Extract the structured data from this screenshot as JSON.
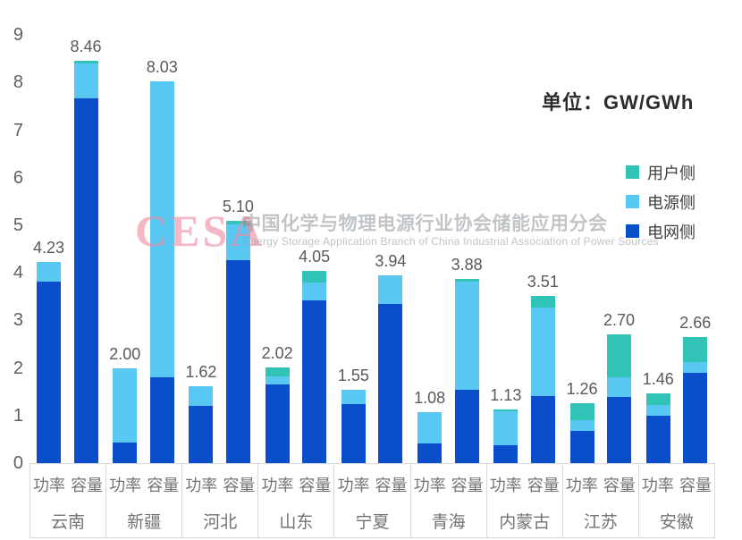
{
  "title": {
    "unit_label": "单位：GW/GWh"
  },
  "watermark": {
    "logo": "CESA",
    "cn": "中国化学与物理电源行业协会储能应用分会",
    "en": "Energy Storage Application Branch of China Industrial Association of Power Sources"
  },
  "legend": [
    {
      "label": "用户侧",
      "color": "#31c3b5"
    },
    {
      "label": "电源侧",
      "color": "#58c8f2"
    },
    {
      "label": "电网侧",
      "color": "#0b4ecb"
    }
  ],
  "chart_data": {
    "type": "bar",
    "stacked": true,
    "unit": "GW/GWh",
    "title": "单位：GW/GWh",
    "xlabel": "",
    "ylabel": "",
    "ylim": [
      0,
      9
    ],
    "y_step": 1,
    "grid": false,
    "legend_position": "right",
    "categories": [
      "云南",
      "新疆",
      "河北",
      "山东",
      "宁夏",
      "青海",
      "内蒙古",
      "江苏",
      "安徽"
    ],
    "sub_categories": [
      "功率",
      "容量"
    ],
    "series_order_bottom_to_top": [
      "电网侧",
      "电源侧",
      "用户侧"
    ],
    "series_colors": {
      "电网侧": "#0b4ecb",
      "电源侧": "#58c8f2",
      "用户侧": "#31c3b5"
    },
    "bars": [
      {
        "category": "云南",
        "sub": "功率",
        "label": "4.23",
        "total": 4.23,
        "segments": {
          "电网侧": 3.82,
          "电源侧": 0.41,
          "用户侧": 0
        }
      },
      {
        "category": "云南",
        "sub": "容量",
        "label": "8.46",
        "total": 8.46,
        "segments": {
          "电网侧": 7.67,
          "电源侧": 0.73,
          "用户侧": 0.06
        }
      },
      {
        "category": "新疆",
        "sub": "功率",
        "label": "2.00",
        "total": 2.0,
        "segments": {
          "电网侧": 0.43,
          "电源侧": 1.57,
          "用户侧": 0
        }
      },
      {
        "category": "新疆",
        "sub": "容量",
        "label": "8.03",
        "total": 8.03,
        "segments": {
          "电网侧": 1.8,
          "电源侧": 6.23,
          "用户侧": 0
        }
      },
      {
        "category": "河北",
        "sub": "功率",
        "label": "1.62",
        "total": 1.62,
        "segments": {
          "电网侧": 1.2,
          "电源侧": 0.42,
          "用户侧": 0
        }
      },
      {
        "category": "河北",
        "sub": "容量",
        "label": "5.10",
        "total": 5.1,
        "segments": {
          "电网侧": 4.27,
          "电源侧": 0.75,
          "用户侧": 0.08
        }
      },
      {
        "category": "山东",
        "sub": "功率",
        "label": "2.02",
        "total": 2.02,
        "segments": {
          "电网侧": 1.65,
          "电源侧": 0.17,
          "用户侧": 0.2
        }
      },
      {
        "category": "山东",
        "sub": "容量",
        "label": "4.05",
        "total": 4.05,
        "segments": {
          "电网侧": 3.42,
          "电源侧": 0.38,
          "用户侧": 0.25
        }
      },
      {
        "category": "宁夏",
        "sub": "功率",
        "label": "1.55",
        "total": 1.55,
        "segments": {
          "电网侧": 1.24,
          "电源侧": 0.31,
          "用户侧": 0
        }
      },
      {
        "category": "宁夏",
        "sub": "容量",
        "label": "3.94",
        "total": 3.94,
        "segments": {
          "电网侧": 3.35,
          "电源侧": 0.59,
          "用户侧": 0
        }
      },
      {
        "category": "青海",
        "sub": "功率",
        "label": "1.08",
        "total": 1.08,
        "segments": {
          "电网侧": 0.41,
          "电源侧": 0.67,
          "用户侧": 0
        }
      },
      {
        "category": "青海",
        "sub": "容量",
        "label": "3.88",
        "total": 3.88,
        "segments": {
          "电网侧": 1.54,
          "电源侧": 2.28,
          "用户侧": 0.06
        }
      },
      {
        "category": "内蒙古",
        "sub": "功率",
        "label": "1.13",
        "total": 1.13,
        "segments": {
          "电网侧": 0.38,
          "电源侧": 0.71,
          "用户侧": 0.04
        }
      },
      {
        "category": "内蒙古",
        "sub": "容量",
        "label": "3.51",
        "total": 3.51,
        "segments": {
          "电网侧": 1.41,
          "电源侧": 1.86,
          "用户侧": 0.24
        }
      },
      {
        "category": "江苏",
        "sub": "功率",
        "label": "1.26",
        "total": 1.26,
        "segments": {
          "电网侧": 0.68,
          "电源侧": 0.22,
          "用户侧": 0.36
        }
      },
      {
        "category": "江苏",
        "sub": "容量",
        "label": "2.70",
        "total": 2.7,
        "segments": {
          "电网侧": 1.4,
          "电源侧": 0.4,
          "用户侧": 0.9
        }
      },
      {
        "category": "安徽",
        "sub": "功率",
        "label": "1.46",
        "total": 1.46,
        "segments": {
          "电网侧": 1.0,
          "电源侧": 0.23,
          "用户侧": 0.23
        }
      },
      {
        "category": "安徽",
        "sub": "容量",
        "label": "2.66",
        "total": 2.66,
        "segments": {
          "电网侧": 1.89,
          "电源侧": 0.24,
          "用户侧": 0.53
        }
      }
    ]
  }
}
